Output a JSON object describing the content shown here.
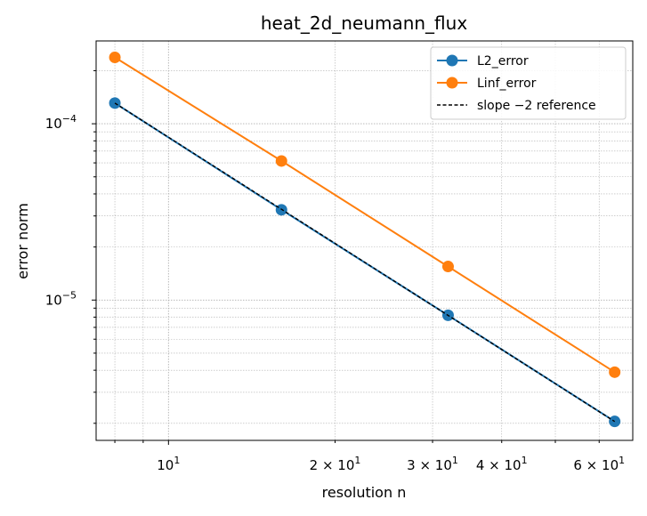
{
  "chart_data": {
    "type": "line",
    "title": "heat_2d_neumann_flux",
    "xlabel": "resolution n",
    "ylabel": "error norm",
    "xscale": "log",
    "yscale": "log",
    "xlim": [
      7.4,
      69
    ],
    "ylim": [
      1.6e-06,
      0.000295
    ],
    "grid": true,
    "legend_position": "top-right",
    "x_ticks": [
      {
        "value": 10,
        "base": "10",
        "exp": "1"
      },
      {
        "value": 20,
        "base": "2 × 10",
        "exp": "1"
      },
      {
        "value": 30,
        "base": "3 × 10",
        "exp": "1"
      },
      {
        "value": 40,
        "base": "4 × 10",
        "exp": "1"
      },
      {
        "value": 60,
        "base": "6 × 10",
        "exp": "1"
      }
    ],
    "y_ticks": [
      {
        "value": 0.0001,
        "base": "10",
        "exp": "−4"
      },
      {
        "value": 1e-05,
        "base": "10",
        "exp": "−5"
      }
    ],
    "series": [
      {
        "name": "L2_error",
        "color": "#1f77b4",
        "style": "solid-marker",
        "x": [
          8,
          16,
          32,
          64
        ],
        "y": [
          0.000131,
          3.25e-05,
          8.2e-06,
          2.05e-06
        ]
      },
      {
        "name": "Linf_error",
        "color": "#ff7f0e",
        "style": "solid-marker",
        "x": [
          8,
          16,
          32,
          64
        ],
        "y": [
          0.000238,
          6.15e-05,
          1.55e-05,
          3.9e-06
        ]
      },
      {
        "name": "slope −2 reference",
        "color": "#000000",
        "style": "dashed",
        "x": [
          8,
          16,
          32,
          64
        ],
        "y": [
          0.000131,
          3.275e-05,
          8.1875e-06,
          2.0469e-06
        ]
      }
    ]
  }
}
